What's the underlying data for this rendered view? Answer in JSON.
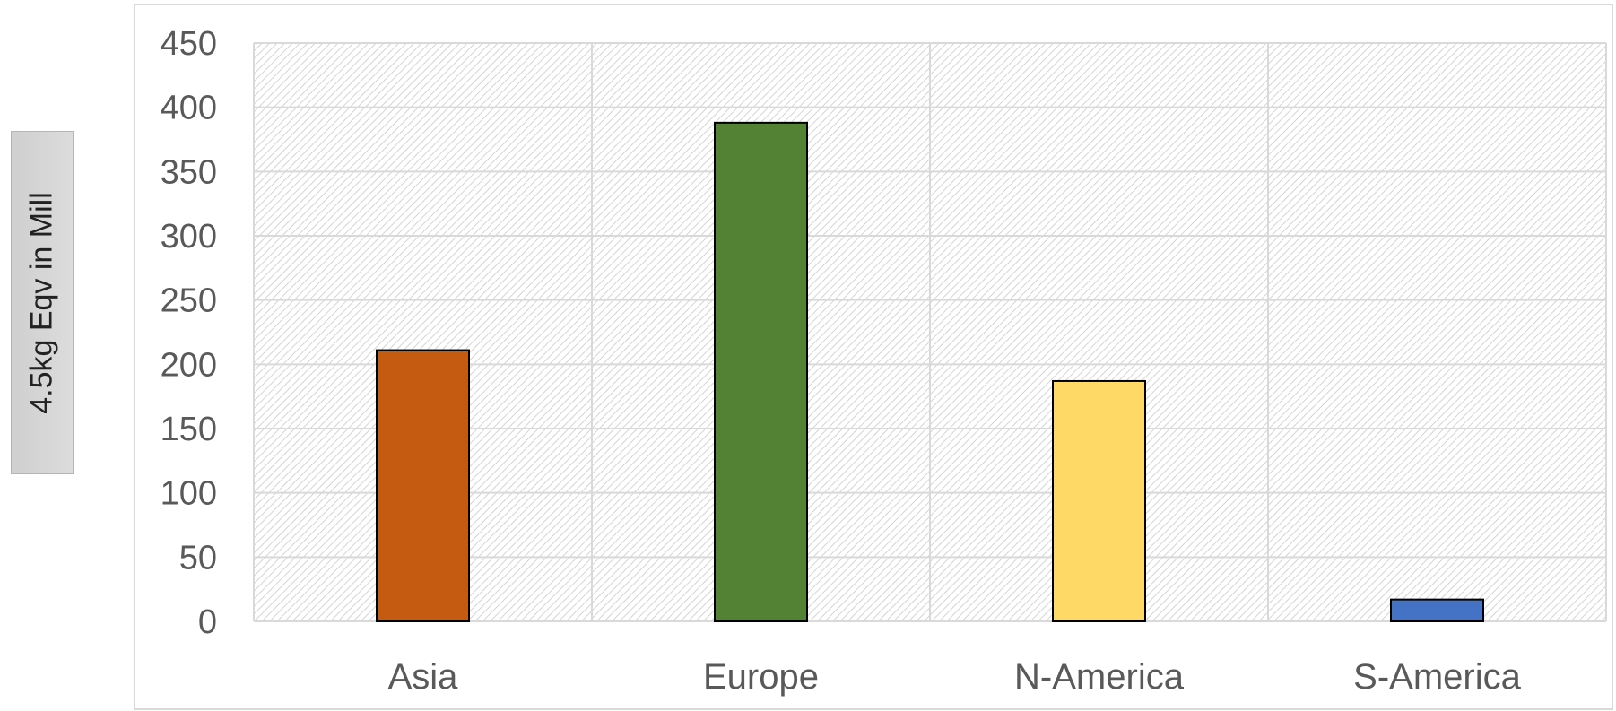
{
  "chart_data": {
    "type": "bar",
    "categories": [
      "Asia",
      "Europe",
      "N-America",
      "S-America"
    ],
    "values": [
      211,
      388,
      187,
      17
    ],
    "colors": [
      "#c55a11",
      "#548235",
      "#ffd966",
      "#4472c4"
    ],
    "title": "",
    "xlabel": "",
    "ylabel": "4.5kg Eqv in Mill",
    "ylim": [
      0,
      450
    ],
    "yticks": [
      0,
      50,
      100,
      150,
      200,
      250,
      300,
      350,
      400,
      450
    ],
    "grid": true,
    "legend": "none",
    "plot_background": "diagonal-hatch"
  }
}
